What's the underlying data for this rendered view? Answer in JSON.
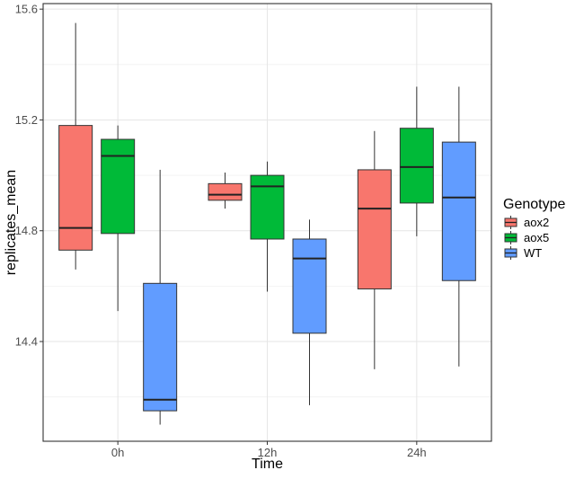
{
  "chart_data": {
    "type": "boxplot",
    "xlabel": "Time",
    "ylabel": "replicates_mean",
    "categories": [
      "0h",
      "12h",
      "24h"
    ],
    "ylim": [
      14.04,
      15.62
    ],
    "yticks": [
      14.4,
      14.8,
      15.2,
      15.6
    ],
    "grid": true,
    "legend": {
      "title": "Genotype",
      "position": "right"
    },
    "series": [
      {
        "name": "aox2",
        "color": "#F8766D",
        "boxes": [
          {
            "category": "0h",
            "min": 14.66,
            "q1": 14.73,
            "median": 14.81,
            "q3": 15.18,
            "max": 15.55
          },
          {
            "category": "12h",
            "min": 14.88,
            "q1": 14.91,
            "median": 14.93,
            "q3": 14.97,
            "max": 15.01
          },
          {
            "category": "24h",
            "min": 14.3,
            "q1": 14.59,
            "median": 14.88,
            "q3": 15.02,
            "max": 15.16
          }
        ]
      },
      {
        "name": "aox5",
        "color": "#00BA38",
        "boxes": [
          {
            "category": "0h",
            "min": 14.51,
            "q1": 14.79,
            "median": 15.07,
            "q3": 15.13,
            "max": 15.18
          },
          {
            "category": "12h",
            "min": 14.58,
            "q1": 14.77,
            "median": 14.96,
            "q3": 15.0,
            "max": 15.05
          },
          {
            "category": "24h",
            "min": 14.78,
            "q1": 14.9,
            "median": 15.03,
            "q3": 15.17,
            "max": 15.32
          }
        ]
      },
      {
        "name": "WT",
        "color": "#619CFF",
        "boxes": [
          {
            "category": "0h",
            "min": 14.1,
            "q1": 14.15,
            "median": 14.19,
            "q3": 14.61,
            "max": 15.02
          },
          {
            "category": "12h",
            "min": 14.17,
            "q1": 14.43,
            "median": 14.7,
            "q3": 14.77,
            "max": 14.84
          },
          {
            "category": "24h",
            "min": 14.31,
            "q1": 14.62,
            "median": 14.92,
            "q3": 15.12,
            "max": 15.32
          }
        ]
      }
    ]
  }
}
